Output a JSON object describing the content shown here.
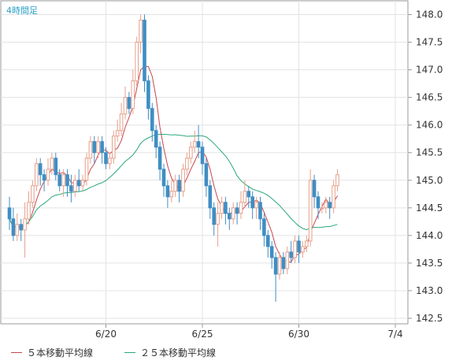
{
  "chart_data": {
    "type": "candlestick",
    "title": "4時間足",
    "ylim": [
      142.4,
      148.25
    ],
    "y_ticks": [
      142.5,
      143.0,
      143.5,
      144.0,
      144.5,
      145.0,
      145.5,
      146.0,
      146.5,
      147.0,
      147.5,
      148.0
    ],
    "x_ticks": [
      {
        "index": 25,
        "label": "6/20"
      },
      {
        "index": 50,
        "label": "6/25"
      },
      {
        "index": 75,
        "label": "6/30"
      },
      {
        "index": 100,
        "label": "7/4"
      }
    ],
    "candles": [
      [
        144.5,
        144.3,
        144.7,
        144.1
      ],
      [
        144.3,
        144.0,
        144.5,
        143.9
      ],
      [
        144.0,
        144.2,
        144.4,
        143.9
      ],
      [
        144.2,
        144.1,
        144.3,
        143.9
      ],
      [
        144.1,
        144.3,
        144.6,
        143.6
      ],
      [
        144.3,
        144.6,
        144.8,
        144.2
      ],
      [
        144.6,
        144.9,
        145.0,
        144.5
      ],
      [
        144.9,
        145.3,
        145.4,
        144.8
      ],
      [
        145.3,
        145.1,
        145.4,
        144.9
      ],
      [
        145.1,
        145.0,
        145.2,
        144.8
      ],
      [
        145.0,
        145.2,
        145.4,
        144.9
      ],
      [
        145.2,
        145.4,
        145.5,
        145.1
      ],
      [
        145.4,
        145.1,
        145.5,
        145.0
      ],
      [
        145.1,
        144.9,
        145.2,
        144.8
      ],
      [
        144.9,
        145.1,
        145.2,
        144.7
      ],
      [
        145.1,
        144.9,
        145.2,
        144.7
      ],
      [
        144.9,
        144.8,
        145.1,
        144.6
      ],
      [
        144.8,
        145.0,
        145.1,
        144.7
      ],
      [
        145.0,
        144.9,
        145.2,
        144.8
      ],
      [
        144.9,
        145.0,
        145.1,
        144.8
      ],
      [
        145.0,
        145.4,
        145.5,
        144.9
      ],
      [
        145.4,
        145.7,
        145.8,
        145.3
      ],
      [
        145.7,
        145.5,
        145.8,
        145.3
      ],
      [
        145.5,
        145.7,
        145.8,
        145.4
      ],
      [
        145.7,
        145.5,
        145.8,
        145.3
      ],
      [
        145.5,
        145.3,
        145.6,
        145.2
      ],
      [
        145.3,
        145.4,
        145.5,
        145.2
      ],
      [
        145.4,
        145.8,
        145.9,
        145.3
      ],
      [
        145.8,
        145.9,
        146.1,
        145.7
      ],
      [
        145.9,
        146.2,
        146.4,
        145.8
      ],
      [
        146.2,
        146.5,
        146.7,
        146.1
      ],
      [
        146.5,
        146.3,
        146.6,
        146.2
      ],
      [
        146.3,
        146.8,
        147.0,
        146.2
      ],
      [
        146.8,
        147.5,
        147.6,
        146.7
      ],
      [
        147.5,
        147.9,
        148.0,
        147.3
      ],
      [
        147.9,
        146.8,
        148.0,
        146.6
      ],
      [
        146.8,
        146.3,
        146.9,
        146.1
      ],
      [
        146.3,
        145.9,
        146.4,
        145.7
      ],
      [
        145.9,
        145.6,
        146.0,
        145.4
      ],
      [
        145.6,
        145.2,
        145.7,
        145.0
      ],
      [
        145.2,
        144.9,
        145.3,
        144.7
      ],
      [
        144.9,
        144.7,
        145.0,
        144.5
      ],
      [
        144.7,
        144.8,
        145.0,
        144.6
      ],
      [
        144.8,
        145.0,
        145.1,
        144.7
      ],
      [
        145.0,
        144.8,
        145.1,
        144.6
      ],
      [
        144.8,
        145.2,
        145.3,
        144.7
      ],
      [
        145.2,
        145.4,
        145.5,
        145.1
      ],
      [
        145.4,
        145.6,
        145.7,
        145.3
      ],
      [
        145.6,
        145.7,
        145.9,
        145.5
      ],
      [
        145.7,
        145.6,
        146.0,
        145.4
      ],
      [
        145.6,
        145.3,
        145.7,
        145.1
      ],
      [
        145.3,
        144.9,
        145.4,
        144.7
      ],
      [
        144.9,
        144.5,
        145.0,
        144.3
      ],
      [
        144.5,
        144.2,
        144.6,
        144.0
      ],
      [
        144.2,
        144.4,
        144.6,
        143.8
      ],
      [
        144.4,
        144.6,
        144.7,
        144.3
      ],
      [
        144.6,
        144.4,
        144.7,
        144.2
      ],
      [
        144.4,
        144.3,
        144.5,
        144.1
      ],
      [
        144.3,
        144.5,
        144.6,
        144.2
      ],
      [
        144.5,
        144.4,
        144.6,
        144.2
      ],
      [
        144.4,
        144.6,
        144.8,
        144.3
      ],
      [
        144.6,
        144.8,
        145.0,
        144.5
      ],
      [
        144.8,
        144.7,
        144.9,
        144.5
      ],
      [
        144.7,
        144.5,
        144.8,
        144.3
      ],
      [
        144.5,
        144.6,
        144.7,
        144.3
      ],
      [
        144.6,
        144.3,
        144.7,
        144.1
      ],
      [
        144.3,
        144.0,
        144.4,
        143.8
      ],
      [
        144.0,
        143.8,
        144.1,
        143.6
      ],
      [
        143.8,
        143.6,
        143.9,
        143.4
      ],
      [
        143.6,
        143.3,
        143.7,
        142.8
      ],
      [
        143.3,
        143.6,
        143.7,
        143.2
      ],
      [
        143.6,
        143.4,
        143.7,
        143.3
      ],
      [
        143.4,
        143.7,
        143.8,
        143.3
      ],
      [
        143.7,
        143.6,
        143.9,
        143.5
      ],
      [
        143.6,
        143.9,
        144.0,
        143.5
      ],
      [
        143.9,
        143.7,
        144.0,
        143.5
      ],
      [
        143.7,
        143.8,
        143.9,
        143.6
      ],
      [
        143.8,
        143.9,
        144.0,
        143.7
      ],
      [
        143.9,
        145.0,
        145.2,
        143.8
      ],
      [
        145.0,
        144.7,
        145.1,
        144.5
      ],
      [
        144.7,
        144.5,
        144.8,
        144.3
      ],
      [
        144.5,
        144.5,
        144.6,
        144.4
      ],
      [
        144.5,
        144.6,
        144.7,
        144.4
      ],
      [
        144.6,
        144.5,
        144.7,
        144.3
      ],
      [
        144.5,
        144.9,
        145.0,
        144.4
      ],
      [
        144.9,
        145.1,
        145.2,
        144.8
      ]
    ],
    "series": [
      {
        "name": "５本移動平均線",
        "color": "#c84650",
        "ma": 5
      },
      {
        "name": "２５本移動平均線",
        "color": "#2aa878",
        "ma": 25
      }
    ],
    "up_color": "#e6a08c",
    "down_color": "#3f8ec4",
    "grid": true,
    "legend_position": "bottom"
  }
}
